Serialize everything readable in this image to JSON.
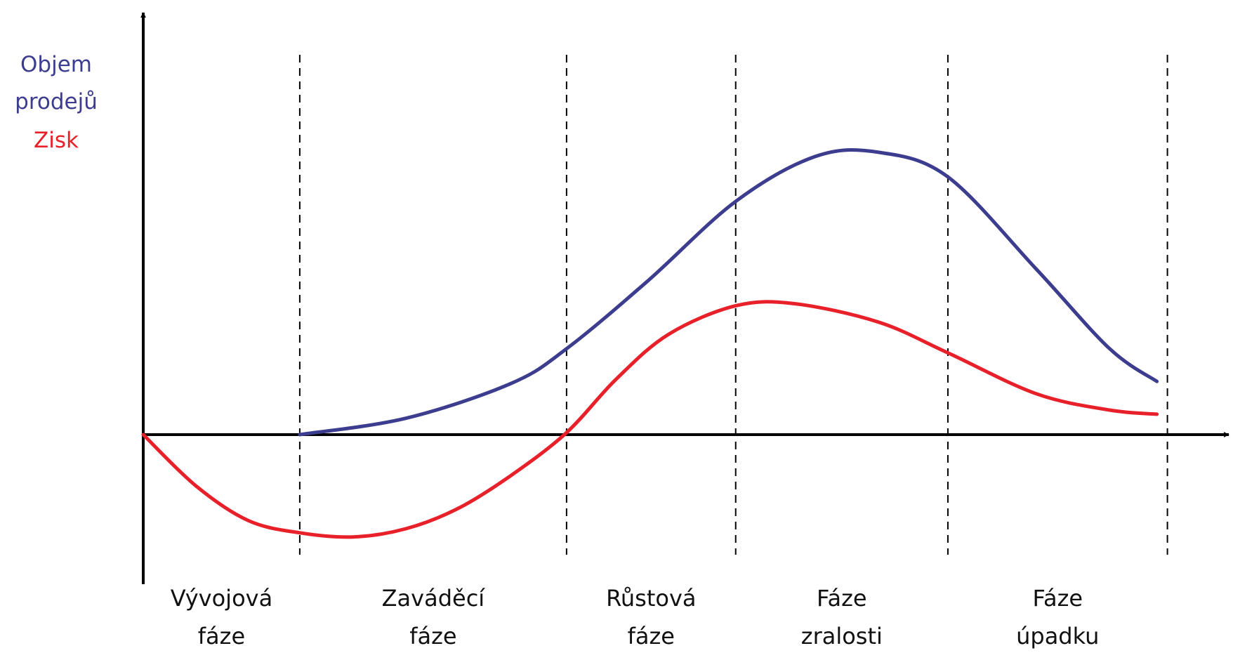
{
  "chart_data": {
    "type": "line",
    "title": "",
    "xlabel": "",
    "ylabel_lines": [
      {
        "text": "Objem",
        "color": "#3d3d8f"
      },
      {
        "text": "prodejů",
        "color": "#3d3d8f"
      },
      {
        "text": "Zisk",
        "color": "#e8202a"
      }
    ],
    "grid": false,
    "ylim": [
      -0.55,
      1.85
    ],
    "xlim": [
      0,
      1
    ],
    "phase_boundaries": [
      0.149,
      0.403,
      0.564,
      0.766,
      0.975
    ],
    "phases": [
      {
        "line1": "Vývojová",
        "line2": "fáze"
      },
      {
        "line1": "Zaváděcí",
        "line2": "fáze"
      },
      {
        "line1": "Růstová",
        "line2": "fáze"
      },
      {
        "line1": "Fáze",
        "line2": "zralosti"
      },
      {
        "line1": "Fáze",
        "line2": "úpadku"
      }
    ],
    "series": [
      {
        "key": "sales",
        "color": "#3d3d8f",
        "x": [
          0.149,
          0.25,
          0.35,
          0.403,
          0.48,
          0.564,
          0.64,
          0.7,
          0.766,
          0.85,
          0.92,
          0.965
        ],
        "y": [
          0.0,
          0.08,
          0.25,
          0.42,
          0.75,
          1.14,
          1.36,
          1.38,
          1.26,
          0.81,
          0.42,
          0.26
        ]
      },
      {
        "key": "profit",
        "color": "#e8202a",
        "x": [
          0.0,
          0.05,
          0.1,
          0.149,
          0.2,
          0.25,
          0.3,
          0.35,
          0.403,
          0.45,
          0.5,
          0.564,
          0.62,
          0.7,
          0.766,
          0.85,
          0.92,
          0.965
        ],
        "y": [
          0.0,
          -0.25,
          -0.42,
          -0.48,
          -0.5,
          -0.46,
          -0.36,
          -0.2,
          0.01,
          0.27,
          0.49,
          0.63,
          0.64,
          0.55,
          0.4,
          0.2,
          0.12,
          0.1
        ]
      }
    ]
  }
}
